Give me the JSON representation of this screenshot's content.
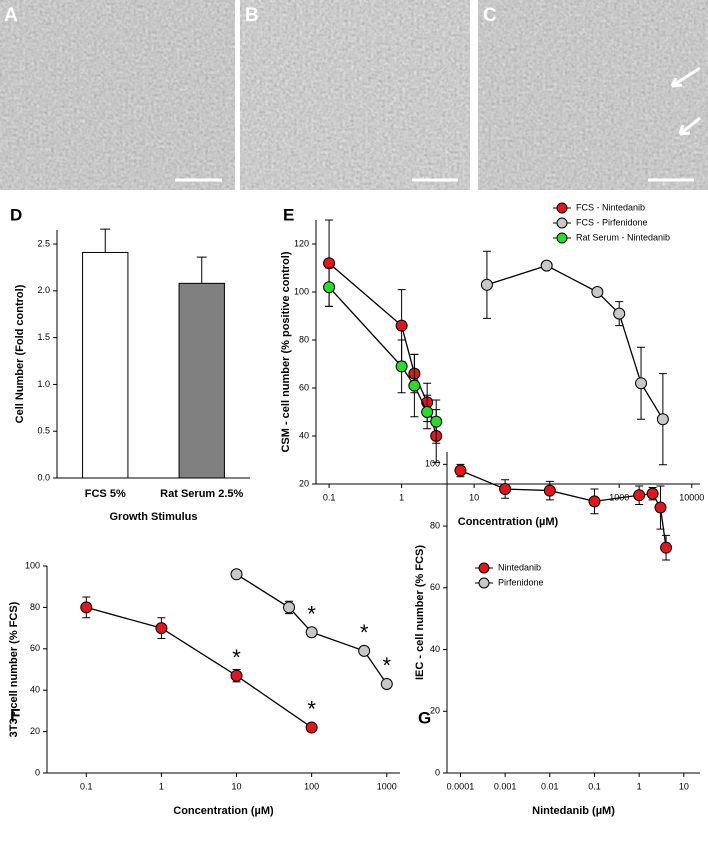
{
  "images": [
    {
      "label": "A"
    },
    {
      "label": "B"
    },
    {
      "label": "C"
    }
  ],
  "chart_data": [
    {
      "type": "bar",
      "panel_label": "D",
      "x_label": "Growth Stimulus",
      "y_label": "Cell Number (Fold control)",
      "categories": [
        "FCS 5%",
        "Rat Serum 2.5%"
      ],
      "values": [
        2.41,
        2.08
      ],
      "errors": [
        0.25,
        0.28
      ],
      "colors": [
        "#ffffff",
        "#808080"
      ],
      "ylim": [
        0,
        2.65
      ],
      "yticks": [
        {
          "value": 0,
          "label": "0.0"
        },
        0.5,
        {
          "value": 1,
          "label": "1.0"
        },
        1.5,
        {
          "value": 2,
          "label": "2.0"
        },
        2.5
      ]
    },
    {
      "type": "line",
      "panel_label": "E",
      "x_label": "Concentration (µM)",
      "y_label": "CSM - cell number (% positive control)",
      "xscale": "log",
      "xlim": [
        0.066,
        13000
      ],
      "xticks": [
        0.1,
        1,
        10,
        1000,
        10000
      ],
      "ylim": [
        20,
        130
      ],
      "yticks": [
        20,
        40,
        60,
        80,
        100,
        120
      ],
      "legend": "upper right",
      "series": [
        {
          "name": "FCS - Nintedanib",
          "color": "#e8141b",
          "x": [
            0.1,
            1,
            1.5,
            2.25,
            3
          ],
          "values": [
            112,
            86,
            66,
            54,
            40
          ],
          "errors": [
            18,
            15,
            8,
            8,
            11
          ]
        },
        {
          "name": "FCS - Pirfenidone",
          "color": "#c8c8c8",
          "x": [
            15,
            100,
            500,
            1000,
            2000,
            4000
          ],
          "values": [
            103,
            111,
            100,
            91,
            62,
            47
          ],
          "errors": [
            14,
            1,
            1,
            5,
            15,
            19
          ]
        },
        {
          "name": "Rat Serum - Nintedanib",
          "color": "#22e022",
          "x": [
            0.1,
            1,
            1.5,
            2.25,
            3
          ],
          "values": [
            102,
            69,
            61,
            50,
            46
          ],
          "errors": [
            8,
            11,
            13,
            7,
            9
          ]
        }
      ]
    },
    {
      "type": "line",
      "panel_label": "F",
      "x_label": "Concentration (µM)",
      "y_label": "3T3 - cell number (% FCS)",
      "xscale": "log",
      "xlim": [
        0.03,
        1500
      ],
      "xticks": [
        0.1,
        1,
        10,
        100,
        1000
      ],
      "ylim": [
        0,
        100
      ],
      "yticks": [
        0,
        20,
        40,
        60,
        80,
        100
      ],
      "legend": "upper right",
      "series": [
        {
          "name": "Nintedanib",
          "color": "#e8141b",
          "x": [
            0.1,
            1,
            10,
            100
          ],
          "values": [
            80,
            70,
            47,
            22
          ],
          "errors": [
            5,
            5,
            3,
            2
          ]
        },
        {
          "name": "Pirfenidone",
          "color": "#c8c8c8",
          "x": [
            10,
            50,
            100,
            500,
            1000
          ],
          "values": [
            96,
            80,
            68,
            59,
            43
          ],
          "errors": [
            1,
            3,
            2,
            2,
            1
          ]
        }
      ],
      "annotations": [
        {
          "text": "*",
          "x": 10,
          "y": 55
        },
        {
          "text": "*",
          "x": 100,
          "y": 30
        },
        {
          "text": "*",
          "x": 100,
          "y": 76
        },
        {
          "text": "*",
          "x": 500,
          "y": 67
        },
        {
          "text": "*",
          "x": 1000,
          "y": 51
        }
      ]
    },
    {
      "type": "line",
      "panel_label": "G",
      "x_label": "Nintedanib (µM)",
      "y_label": "IEC - cell number (% FCS)",
      "xscale": "log",
      "xlim": [
        5e-05,
        23
      ],
      "xticks": [
        0.0001,
        0.001,
        0.01,
        0.1,
        1,
        10
      ],
      "ylim": [
        0,
        104
      ],
      "yticks": [
        0,
        20,
        40,
        60,
        80,
        100
      ],
      "series": [
        {
          "color": "#e8141b",
          "x": [
            0.0001,
            0.001,
            0.01,
            0.1,
            1,
            2,
            3,
            4
          ],
          "values": [
            98,
            92,
            91.5,
            88,
            90,
            90.5,
            86,
            73
          ],
          "errors": [
            2,
            3,
            3,
            4,
            3,
            2,
            7,
            4
          ]
        }
      ]
    }
  ]
}
